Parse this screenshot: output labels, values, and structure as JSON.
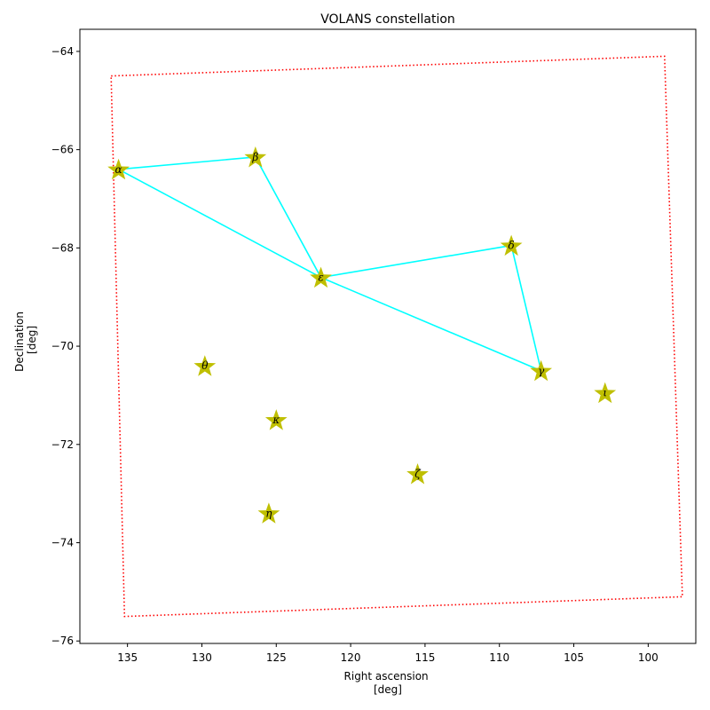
{
  "chart_data": {
    "type": "scatter",
    "title": "VOLANS constellation",
    "xlabel": [
      "Right ascension",
      "[deg]"
    ],
    "ylabel": [
      "Declination",
      "[deg]"
    ],
    "xlim": [
      138.2,
      96.8
    ],
    "ylim": [
      -76.05,
      -63.55
    ],
    "xticks": [
      135,
      130,
      125,
      120,
      115,
      110,
      105,
      100
    ],
    "yticks": [
      -64,
      -66,
      -68,
      -70,
      -72,
      -74,
      -76
    ],
    "x_tick_labels": [
      "135",
      "130",
      "125",
      "120",
      "115",
      "110",
      "105",
      "100"
    ],
    "y_tick_labels": [
      "−64",
      "−66",
      "−68",
      "−70",
      "−72",
      "−74",
      "−76"
    ],
    "grid": false,
    "stars": [
      {
        "label": "α",
        "ra": 135.6,
        "dec": -66.4
      },
      {
        "label": "β",
        "ra": 126.4,
        "dec": -66.15
      },
      {
        "label": "γ",
        "ra": 107.2,
        "dec": -70.5
      },
      {
        "label": "δ",
        "ra": 109.2,
        "dec": -67.95
      },
      {
        "label": "ε",
        "ra": 122.0,
        "dec": -68.6
      },
      {
        "label": "ζ",
        "ra": 115.5,
        "dec": -72.6
      },
      {
        "label": "η",
        "ra": 125.5,
        "dec": -73.4
      },
      {
        "label": "θ",
        "ra": 129.8,
        "dec": -70.4
      },
      {
        "label": "ι",
        "ra": 102.9,
        "dec": -70.95
      },
      {
        "label": "κ",
        "ra": 125.0,
        "dec": -71.5
      }
    ],
    "lines": [
      [
        {
          "ra": 135.6,
          "dec": -66.4
        },
        {
          "ra": 126.4,
          "dec": -66.15
        }
      ],
      [
        {
          "ra": 126.4,
          "dec": -66.15
        },
        {
          "ra": 122.0,
          "dec": -68.6
        }
      ],
      [
        {
          "ra": 135.6,
          "dec": -66.4
        },
        {
          "ra": 122.0,
          "dec": -68.6
        }
      ],
      [
        {
          "ra": 122.0,
          "dec": -68.6
        },
        {
          "ra": 109.2,
          "dec": -67.95
        }
      ],
      [
        {
          "ra": 109.2,
          "dec": -67.95
        },
        {
          "ra": 107.2,
          "dec": -70.5
        }
      ],
      [
        {
          "ra": 122.0,
          "dec": -68.6
        },
        {
          "ra": 107.2,
          "dec": -70.5
        }
      ]
    ],
    "boundary": [
      {
        "ra": 136.1,
        "dec": -64.5
      },
      {
        "ra": 98.9,
        "dec": -64.1
      },
      {
        "ra": 97.7,
        "dec": -75.1
      },
      {
        "ra": 135.2,
        "dec": -75.5
      }
    ],
    "colors": {
      "star": "#bfbf00",
      "line": "#00ffff",
      "boundary": "#ff0000"
    }
  }
}
